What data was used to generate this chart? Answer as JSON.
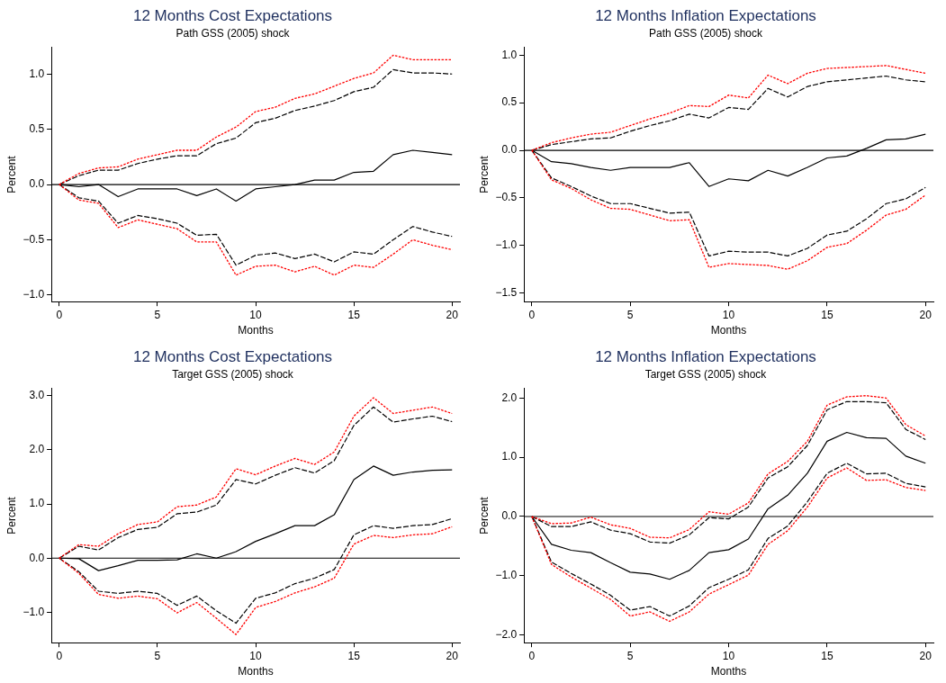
{
  "chart_data": [
    {
      "type": "line",
      "title": "12 Months Cost Expectations",
      "subtitle": "Path GSS (2005) shock",
      "xlabel": "Months",
      "ylabel": "Percent",
      "x": [
        0,
        1,
        2,
        3,
        4,
        5,
        6,
        7,
        8,
        9,
        10,
        11,
        12,
        13,
        14,
        15,
        16,
        17,
        18,
        19,
        20
      ],
      "xlim": [
        -0.4,
        20.4
      ],
      "xticks": [
        0,
        5,
        10,
        15,
        20
      ],
      "ylim": [
        -1.06,
        1.24
      ],
      "yticks": [
        {
          "value": -1,
          "label": "−1.0"
        },
        {
          "value": -0.5,
          "label": "−0.5"
        },
        {
          "value": 0,
          "label": "0.0"
        },
        {
          "value": 0.5,
          "label": "0.5"
        },
        {
          "value": 1,
          "label": "1.0"
        }
      ],
      "grid": false,
      "legend": false,
      "marker": "none",
      "ref_lines": [
        {
          "axis": "y",
          "value": 0,
          "color": "#000000"
        }
      ],
      "series": [
        {
          "color": "#000000",
          "line_style": "solid",
          "values": [
            0,
            -0.02,
            0,
            -0.11,
            -0.04,
            -0.04,
            -0.04,
            -0.1,
            -0.04,
            -0.15,
            -0.04,
            -0.02,
            0,
            0.04,
            0.04,
            0.11,
            0.12,
            0.27,
            0.31,
            0.29,
            0.27
          ]
        },
        {
          "color": "#000000",
          "line_style": "dashed",
          "values": [
            0,
            0.08,
            0.13,
            0.13,
            0.19,
            0.23,
            0.26,
            0.26,
            0.37,
            0.42,
            0.56,
            0.6,
            0.67,
            0.71,
            0.76,
            0.84,
            0.88,
            1.04,
            1.01,
            1.01,
            1
          ]
        },
        {
          "color": "#ff0000",
          "line_style": "dotted",
          "values": [
            0,
            0.1,
            0.15,
            0.16,
            0.23,
            0.27,
            0.31,
            0.31,
            0.43,
            0.52,
            0.66,
            0.7,
            0.78,
            0.82,
            0.89,
            0.96,
            1.01,
            1.17,
            1.13,
            1.13,
            1.13
          ]
        },
        {
          "color": "#000000",
          "line_style": "dashed",
          "values": [
            0,
            -0.12,
            -0.15,
            -0.35,
            -0.28,
            -0.31,
            -0.35,
            -0.46,
            -0.45,
            -0.73,
            -0.64,
            -0.62,
            -0.67,
            -0.63,
            -0.7,
            -0.61,
            -0.63,
            -0.5,
            -0.38,
            -0.43,
            -0.47
          ]
        },
        {
          "color": "#ff0000",
          "line_style": "dotted",
          "values": [
            0,
            -0.14,
            -0.17,
            -0.39,
            -0.32,
            -0.36,
            -0.4,
            -0.52,
            -0.52,
            -0.82,
            -0.74,
            -0.73,
            -0.79,
            -0.74,
            -0.82,
            -0.73,
            -0.75,
            -0.63,
            -0.5,
            -0.55,
            -0.59
          ]
        }
      ]
    },
    {
      "type": "line",
      "title": "12 Months Inflation Expectations",
      "subtitle": "Path GSS (2005) shock",
      "xlabel": "Months",
      "ylabel": "Percent",
      "x": [
        0,
        1,
        2,
        3,
        4,
        5,
        6,
        7,
        8,
        9,
        10,
        11,
        12,
        13,
        14,
        15,
        16,
        17,
        18,
        19,
        20
      ],
      "xlim": [
        -0.4,
        20.4
      ],
      "xticks": [
        0,
        5,
        10,
        15,
        20
      ],
      "ylim": [
        -1.59,
        1.08
      ],
      "yticks": [
        {
          "value": -1.5,
          "label": "−1.5"
        },
        {
          "value": -1,
          "label": "−1.0"
        },
        {
          "value": -0.5,
          "label": "−0.5"
        },
        {
          "value": 0,
          "label": "0.0"
        },
        {
          "value": 0.5,
          "label": "0.5"
        },
        {
          "value": 1,
          "label": "1.0"
        }
      ],
      "grid": false,
      "legend": false,
      "marker": "none",
      "ref_lines": [
        {
          "axis": "y",
          "value": 0,
          "color": "#000000"
        }
      ],
      "series": [
        {
          "color": "#000000",
          "line_style": "solid",
          "values": [
            0,
            -0.12,
            -0.14,
            -0.18,
            -0.21,
            -0.18,
            -0.18,
            -0.18,
            -0.13,
            -0.38,
            -0.3,
            -0.32,
            -0.21,
            -0.27,
            -0.18,
            -0.08,
            -0.06,
            0.02,
            0.11,
            0.12,
            0.17
          ]
        },
        {
          "color": "#000000",
          "line_style": "dashed",
          "values": [
            0,
            0.06,
            0.09,
            0.12,
            0.13,
            0.2,
            0.26,
            0.31,
            0.38,
            0.34,
            0.45,
            0.43,
            0.65,
            0.56,
            0.67,
            0.72,
            0.74,
            0.76,
            0.78,
            0.74,
            0.72
          ]
        },
        {
          "color": "#ff0000",
          "line_style": "dotted",
          "values": [
            0,
            0.08,
            0.13,
            0.17,
            0.19,
            0.26,
            0.33,
            0.39,
            0.47,
            0.46,
            0.58,
            0.55,
            0.79,
            0.7,
            0.81,
            0.86,
            0.87,
            0.88,
            0.89,
            0.85,
            0.81
          ]
        },
        {
          "color": "#000000",
          "line_style": "dashed",
          "values": [
            0,
            -0.29,
            -0.38,
            -0.48,
            -0.56,
            -0.56,
            -0.61,
            -0.66,
            -0.65,
            -1.11,
            -1.06,
            -1.07,
            -1.07,
            -1.11,
            -1.03,
            -0.89,
            -0.85,
            -0.72,
            -0.56,
            -0.51,
            -0.39
          ]
        },
        {
          "color": "#ff0000",
          "line_style": "dotted",
          "values": [
            0,
            -0.31,
            -0.4,
            -0.52,
            -0.61,
            -0.62,
            -0.68,
            -0.74,
            -0.73,
            -1.23,
            -1.19,
            -1.2,
            -1.21,
            -1.25,
            -1.16,
            -1.02,
            -0.98,
            -0.84,
            -0.68,
            -0.62,
            -0.47
          ]
        }
      ]
    },
    {
      "type": "line",
      "title": "12 Months Cost Expectations",
      "subtitle": "Target GSS (2005) shock",
      "xlabel": "Months",
      "ylabel": "Percent",
      "x": [
        0,
        1,
        2,
        3,
        4,
        5,
        6,
        7,
        8,
        9,
        10,
        11,
        12,
        13,
        14,
        15,
        16,
        17,
        18,
        19,
        20
      ],
      "xlim": [
        -0.4,
        20.4
      ],
      "xticks": [
        0,
        5,
        10,
        15,
        20
      ],
      "ylim": [
        -1.56,
        3.13
      ],
      "yticks": [
        {
          "value": -1,
          "label": "−1.0"
        },
        {
          "value": 0,
          "label": "0.0"
        },
        {
          "value": 1,
          "label": "1.0"
        },
        {
          "value": 2,
          "label": "2.0"
        },
        {
          "value": 3,
          "label": "3.0"
        }
      ],
      "grid": false,
      "legend": false,
      "marker": "none",
      "ref_lines": [
        {
          "axis": "y",
          "value": 0,
          "color": "#000000"
        }
      ],
      "series": [
        {
          "color": "#000000",
          "line_style": "solid",
          "values": [
            0,
            -0.01,
            -0.23,
            -0.14,
            -0.04,
            -0.04,
            -0.03,
            0.08,
            0,
            0.12,
            0.31,
            0.45,
            0.6,
            0.6,
            0.8,
            1.45,
            1.7,
            1.53,
            1.59,
            1.62,
            1.63
          ]
        },
        {
          "color": "#000000",
          "line_style": "dashed",
          "values": [
            0,
            0.22,
            0.15,
            0.38,
            0.53,
            0.57,
            0.82,
            0.85,
            0.98,
            1.45,
            1.37,
            1.53,
            1.67,
            1.57,
            1.8,
            2.45,
            2.79,
            2.51,
            2.57,
            2.62,
            2.52
          ]
        },
        {
          "color": "#ff0000",
          "line_style": "dotted",
          "values": [
            0,
            0.25,
            0.22,
            0.45,
            0.62,
            0.67,
            0.95,
            0.98,
            1.13,
            1.65,
            1.54,
            1.7,
            1.84,
            1.73,
            1.96,
            2.62,
            2.96,
            2.67,
            2.73,
            2.79,
            2.67
          ]
        },
        {
          "color": "#000000",
          "line_style": "dashed",
          "values": [
            0,
            -0.25,
            -0.61,
            -0.65,
            -0.61,
            -0.65,
            -0.87,
            -0.7,
            -0.97,
            -1.2,
            -0.74,
            -0.64,
            -0.47,
            -0.37,
            -0.21,
            0.43,
            0.6,
            0.55,
            0.6,
            0.62,
            0.73
          ]
        },
        {
          "color": "#ff0000",
          "line_style": "dotted",
          "values": [
            0,
            -0.28,
            -0.67,
            -0.74,
            -0.7,
            -0.75,
            -1.01,
            -0.82,
            -1.11,
            -1.41,
            -0.91,
            -0.8,
            -0.64,
            -0.53,
            -0.37,
            0.26,
            0.42,
            0.38,
            0.43,
            0.45,
            0.58
          ]
        }
      ]
    },
    {
      "type": "line",
      "title": "12 Months Inflation Expectations",
      "subtitle": "Target GSS (2005) shock",
      "xlabel": "Months",
      "ylabel": "Percent",
      "x": [
        0,
        1,
        2,
        3,
        4,
        5,
        6,
        7,
        8,
        9,
        10,
        11,
        12,
        13,
        14,
        15,
        16,
        17,
        18,
        19,
        20
      ],
      "xlim": [
        -0.4,
        20.4
      ],
      "xticks": [
        0,
        5,
        10,
        15,
        20
      ],
      "ylim": [
        -2.13,
        2.16
      ],
      "yticks": [
        {
          "value": -2,
          "label": "−2.0"
        },
        {
          "value": -1,
          "label": "−1.0"
        },
        {
          "value": 0,
          "label": "0.0"
        },
        {
          "value": 1,
          "label": "1.0"
        },
        {
          "value": 2,
          "label": "2.0"
        }
      ],
      "grid": false,
      "legend": false,
      "marker": "none",
      "ref_lines": [
        {
          "axis": "y",
          "value": 0,
          "color": "#000000"
        }
      ],
      "series": [
        {
          "color": "#000000",
          "line_style": "solid",
          "values": [
            0,
            -0.47,
            -0.57,
            -0.61,
            -0.78,
            -0.94,
            -0.97,
            -1.06,
            -0.91,
            -0.61,
            -0.56,
            -0.38,
            0.13,
            0.36,
            0.73,
            1.27,
            1.42,
            1.33,
            1.32,
            1.02,
            0.9
          ]
        },
        {
          "color": "#000000",
          "line_style": "dashed",
          "values": [
            0,
            -0.17,
            -0.17,
            -0.09,
            -0.23,
            -0.29,
            -0.43,
            -0.45,
            -0.31,
            -0.02,
            -0.04,
            0.16,
            0.65,
            0.84,
            1.2,
            1.8,
            1.94,
            1.94,
            1.92,
            1.47,
            1.3
          ]
        },
        {
          "color": "#ff0000",
          "line_style": "dotted",
          "values": [
            0,
            -0.12,
            -0.11,
            -0.01,
            -0.14,
            -0.2,
            -0.35,
            -0.36,
            -0.22,
            0.08,
            0.04,
            0.23,
            0.72,
            0.93,
            1.27,
            1.88,
            2.02,
            2.04,
            2,
            1.55,
            1.36
          ]
        },
        {
          "color": "#000000",
          "line_style": "dashed",
          "values": [
            0,
            -0.77,
            -0.96,
            -1.14,
            -1.33,
            -1.58,
            -1.52,
            -1.68,
            -1.51,
            -1.2,
            -1.06,
            -0.9,
            -0.37,
            -0.16,
            0.25,
            0.73,
            0.9,
            0.72,
            0.73,
            0.56,
            0.5
          ]
        },
        {
          "color": "#ff0000",
          "line_style": "dotted",
          "values": [
            0,
            -0.81,
            -1.02,
            -1.21,
            -1.4,
            -1.68,
            -1.61,
            -1.77,
            -1.61,
            -1.31,
            -1.15,
            -0.99,
            -0.47,
            -0.24,
            0.16,
            0.65,
            0.82,
            0.61,
            0.62,
            0.49,
            0.44
          ]
        }
      ]
    }
  ]
}
